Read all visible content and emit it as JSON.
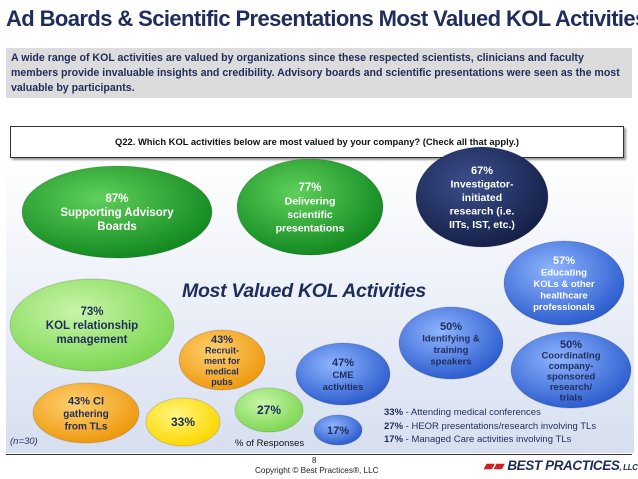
{
  "title": "Ad Boards & Scientific Presentations Most Valued KOL Activities",
  "intro": "A wide range of KOL activities are valued by organizations since these respected scientists, clinicians and faculty members provide invaluable insights and credibility. Advisory boards and scientific presentations were seen as the most valuable by participants.",
  "question": "Q22. Which KOL activities below are most valued by your company? (Check all that apply.)",
  "colors": {
    "green": "#1a9a2a",
    "navy": "#1f2d5c",
    "blue": "#3a6bd4",
    "orange": "#f0a020",
    "yellow": "#ffe11a",
    "lightgreen": "#8fe06a"
  },
  "chart_data": {
    "type": "bubble",
    "title": "Most Valued KOL Activities",
    "unit_label": "% of Responses",
    "n_note": "(n=30)",
    "bubbles": [
      {
        "value": "87%",
        "label": [
          "Supporting Advisory",
          "Boards"
        ],
        "color": "green"
      },
      {
        "value": "77%",
        "label": [
          "Delivering",
          "scientific",
          "presentations"
        ],
        "color": "green"
      },
      {
        "value": "67%",
        "label": [
          "Investigator-",
          "initiated",
          "research (i.e.",
          "IITs, IST, etc.)"
        ],
        "color": "navy"
      },
      {
        "value": "73%",
        "label": [
          "KOL relationship",
          "management"
        ],
        "color": "lightgreen"
      },
      {
        "value": "57%",
        "label": [
          "Educating",
          "KOLs & other",
          "healthcare",
          "professionals"
        ],
        "color": "blue"
      },
      {
        "value": "50%",
        "label": [
          "Identifying &",
          "training",
          "speakers"
        ],
        "color": "blue"
      },
      {
        "value": "50%",
        "label": [
          "Coordinating",
          "company-",
          "sponsored",
          "research/",
          "trials"
        ],
        "color": "blue"
      },
      {
        "value": "47%",
        "label": [
          "CME",
          "activities"
        ],
        "color": "blue"
      },
      {
        "value": "43%",
        "label": [
          "Recruit-",
          "ment for",
          "medical",
          "pubs"
        ],
        "color": "orange"
      },
      {
        "value": "43% CI",
        "label": [
          "gathering",
          "from TLs"
        ],
        "color": "orange"
      },
      {
        "value": "33%",
        "label": [],
        "color": "yellow"
      },
      {
        "value": "27%",
        "label": [],
        "color": "lightgreen"
      },
      {
        "value": "17%",
        "label": [],
        "color": "blue"
      }
    ],
    "legend": [
      {
        "value": "33%",
        "text": " - Attending medical conferences"
      },
      {
        "value": "27%",
        "text": " - HEOR presentations/research involving TLs"
      },
      {
        "value": "17%",
        "text": " - Managed Care activities involving TLs"
      }
    ]
  },
  "footer": {
    "page": "8",
    "copyright": "Copyright © Best Practices®, LLC",
    "logo": "BEST PRACTICES",
    "logo_suffix": ", LLC"
  }
}
